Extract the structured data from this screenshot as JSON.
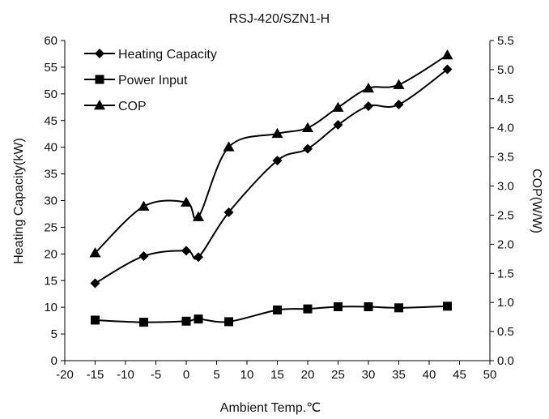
{
  "chart_data": {
    "type": "line",
    "title": "RSJ-420/SZN1-H",
    "xlabel": "Ambient Temp.℃",
    "ylabel": "Heating Capacity(kW)",
    "y2label": "COP(W/W)",
    "xlim": [
      -20,
      50
    ],
    "ylim": [
      0,
      60
    ],
    "y2lim": [
      0.0,
      5.5
    ],
    "x_ticks": [
      "-20",
      "-15",
      "-10",
      "-5",
      "0",
      "5",
      "10",
      "15",
      "20",
      "25",
      "30",
      "35",
      "40",
      "45",
      "50"
    ],
    "y_ticks": [
      "0",
      "5",
      "10",
      "15",
      "20",
      "25",
      "30",
      "35",
      "40",
      "45",
      "50",
      "55",
      "60"
    ],
    "y2_ticks": [
      "0.0",
      "0.5",
      "1.0",
      "1.5",
      "2.0",
      "2.5",
      "3.0",
      "3.5",
      "4.0",
      "4.5",
      "5.0",
      "5.5"
    ],
    "grid": false,
    "legend_position": "top-left",
    "series": [
      {
        "name": "Heating Capacity",
        "axis": "left",
        "marker": "diamond",
        "x": [
          -15,
          -7,
          0,
          2,
          7,
          15,
          20,
          25,
          30,
          35,
          43
        ],
        "values": [
          14.5,
          19.6,
          20.6,
          19.4,
          27.8,
          37.5,
          39.7,
          44.2,
          47.7,
          48.0,
          54.6
        ]
      },
      {
        "name": "Power Input",
        "axis": "left",
        "marker": "square",
        "x": [
          -15,
          -7,
          0,
          2,
          7,
          15,
          20,
          25,
          30,
          35,
          43
        ],
        "values": [
          7.6,
          7.2,
          7.4,
          7.8,
          7.3,
          9.5,
          9.7,
          10.1,
          10.1,
          9.9,
          10.2
        ]
      },
      {
        "name": "COP",
        "axis": "right",
        "marker": "triangle",
        "x": [
          -15,
          -7,
          0,
          2,
          7,
          15,
          20,
          25,
          30,
          35,
          43
        ],
        "values": [
          1.85,
          2.65,
          2.72,
          2.47,
          3.67,
          3.9,
          4.0,
          4.35,
          4.68,
          4.74,
          5.25
        ]
      }
    ]
  }
}
